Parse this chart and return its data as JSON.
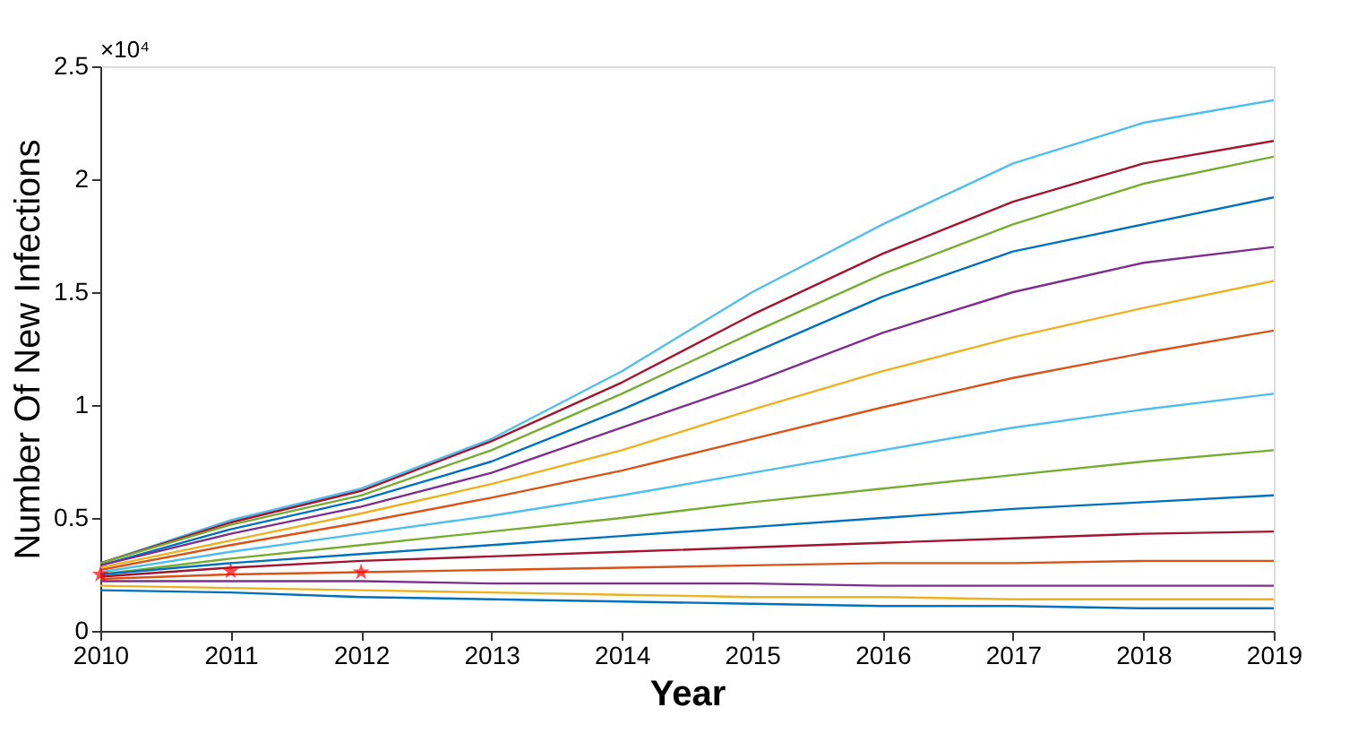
{
  "chart_data": {
    "type": "line",
    "xlabel": "Year",
    "ylabel": "Number Of New Infections",
    "x": [
      2010,
      2011,
      2012,
      2013,
      2014,
      2015,
      2016,
      2017,
      2018,
      2019
    ],
    "xlim": [
      2010,
      2019
    ],
    "xticks": [
      2010,
      2011,
      2012,
      2013,
      2014,
      2015,
      2016,
      2017,
      2018,
      2019
    ],
    "ylim": [
      0,
      2.5
    ],
    "yticks": [
      0,
      0.5,
      1,
      1.5,
      2,
      2.5
    ],
    "annotations": [
      "×10⁴"
    ],
    "grid": false,
    "line_style": "solid",
    "series": [
      {
        "color": "#4dbeee",
        "values": [
          0.3,
          0.49,
          0.63,
          0.85,
          1.15,
          1.5,
          1.8,
          2.07,
          2.25,
          2.35
        ]
      },
      {
        "color": "#a2142f",
        "values": [
          0.3,
          0.48,
          0.62,
          0.84,
          1.1,
          1.4,
          1.67,
          1.9,
          2.07,
          2.17
        ]
      },
      {
        "color": "#77ac30",
        "values": [
          0.3,
          0.47,
          0.6,
          0.8,
          1.05,
          1.32,
          1.58,
          1.8,
          1.98,
          2.1
        ]
      },
      {
        "color": "#0072bd",
        "values": [
          0.29,
          0.45,
          0.58,
          0.75,
          0.98,
          1.23,
          1.48,
          1.68,
          1.8,
          1.92
        ]
      },
      {
        "color": "#7e2f8e",
        "values": [
          0.29,
          0.43,
          0.55,
          0.7,
          0.9,
          1.1,
          1.32,
          1.5,
          1.63,
          1.7
        ]
      },
      {
        "color": "#edb120",
        "values": [
          0.28,
          0.4,
          0.52,
          0.65,
          0.8,
          0.98,
          1.15,
          1.3,
          1.43,
          1.55
        ]
      },
      {
        "color": "#d95319",
        "values": [
          0.27,
          0.38,
          0.48,
          0.59,
          0.71,
          0.85,
          0.99,
          1.12,
          1.23,
          1.33
        ]
      },
      {
        "color": "#4dbeee",
        "values": [
          0.26,
          0.35,
          0.43,
          0.51,
          0.6,
          0.7,
          0.8,
          0.9,
          0.98,
          1.05
        ]
      },
      {
        "color": "#77ac30",
        "values": [
          0.25,
          0.32,
          0.38,
          0.44,
          0.5,
          0.57,
          0.63,
          0.69,
          0.75,
          0.8
        ]
      },
      {
        "color": "#0072bd",
        "values": [
          0.25,
          0.3,
          0.34,
          0.38,
          0.42,
          0.46,
          0.5,
          0.54,
          0.57,
          0.6
        ]
      },
      {
        "color": "#a2142f",
        "values": [
          0.24,
          0.28,
          0.31,
          0.33,
          0.35,
          0.37,
          0.39,
          0.41,
          0.43,
          0.44
        ]
      },
      {
        "color": "#d95319",
        "values": [
          0.23,
          0.25,
          0.26,
          0.27,
          0.28,
          0.29,
          0.3,
          0.3,
          0.31,
          0.31
        ]
      },
      {
        "color": "#7e2f8e",
        "values": [
          0.22,
          0.22,
          0.22,
          0.21,
          0.21,
          0.21,
          0.2,
          0.2,
          0.2,
          0.2
        ]
      },
      {
        "color": "#edb120",
        "values": [
          0.2,
          0.19,
          0.18,
          0.17,
          0.16,
          0.15,
          0.15,
          0.14,
          0.14,
          0.14
        ]
      },
      {
        "color": "#0072bd",
        "values": [
          0.18,
          0.17,
          0.15,
          0.14,
          0.13,
          0.12,
          0.11,
          0.11,
          0.1,
          0.1
        ]
      },
      {
        "type": "scatter",
        "marker": "star",
        "color": "#ff0000",
        "x": [
          2010,
          2011,
          2012
        ],
        "values": [
          0.25,
          0.265,
          0.26
        ]
      }
    ]
  }
}
